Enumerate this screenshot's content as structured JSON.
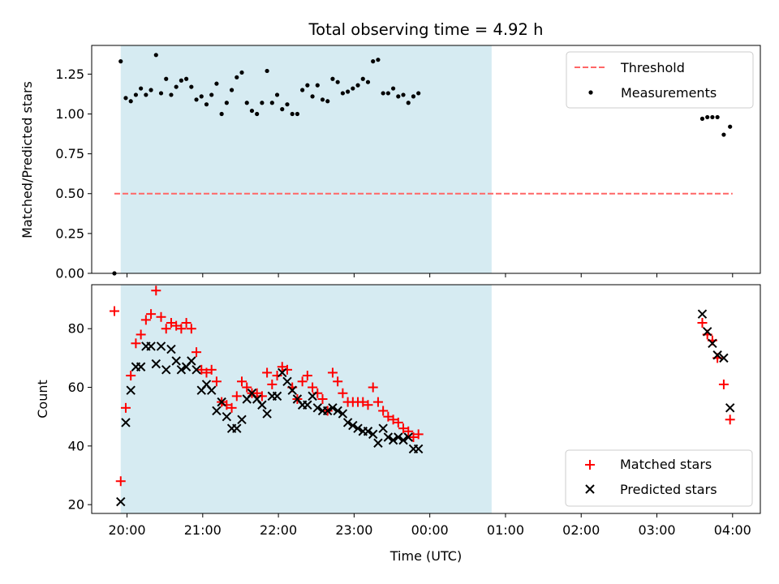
{
  "chart_data": [
    {
      "type": "scatter",
      "title": "Total observing time = 4.92 h",
      "ylabel": "Matched/Predicted stars",
      "xlabel": "",
      "xlim": [
        "19:32",
        "04:22"
      ],
      "ylim": [
        0,
        1.43
      ],
      "yticks": [
        "0.00",
        "0.25",
        "0.50",
        "0.75",
        "1.00",
        "1.25"
      ],
      "xticks": [
        "20:00",
        "21:00",
        "22:00",
        "23:00",
        "00:00",
        "01:00",
        "02:00",
        "03:00",
        "04:00"
      ],
      "x_tick_labels_visible": false,
      "grid": false,
      "legend": "upper-right",
      "highlight_span": {
        "start": "19:55",
        "end": "00:49",
        "color": "#add8e6"
      },
      "threshold": {
        "name": "Threshold",
        "value": 0.5,
        "x": [
          "19:50",
          "04:00"
        ],
        "color": "#ff6666",
        "style": "dashed"
      },
      "series": [
        {
          "name": "Measurements",
          "color": "#000000",
          "marker": "dot",
          "points": [
            [
              "19:50",
              0.0
            ],
            [
              "19:55",
              1.33
            ],
            [
              "19:59",
              1.1
            ],
            [
              "20:03",
              1.08
            ],
            [
              "20:07",
              1.12
            ],
            [
              "20:11",
              1.16
            ],
            [
              "20:15",
              1.12
            ],
            [
              "20:19",
              1.15
            ],
            [
              "20:23",
              1.37
            ],
            [
              "20:27",
              1.13
            ],
            [
              "20:31",
              1.22
            ],
            [
              "20:35",
              1.12
            ],
            [
              "20:39",
              1.17
            ],
            [
              "20:43",
              1.21
            ],
            [
              "20:47",
              1.22
            ],
            [
              "20:51",
              1.17
            ],
            [
              "20:55",
              1.09
            ],
            [
              "20:59",
              1.11
            ],
            [
              "21:03",
              1.06
            ],
            [
              "21:07",
              1.12
            ],
            [
              "21:11",
              1.19
            ],
            [
              "21:15",
              1.0
            ],
            [
              "21:19",
              1.07
            ],
            [
              "21:23",
              1.15
            ],
            [
              "21:27",
              1.23
            ],
            [
              "21:31",
              1.26
            ],
            [
              "21:35",
              1.07
            ],
            [
              "21:39",
              1.02
            ],
            [
              "21:43",
              1.0
            ],
            [
              "21:47",
              1.07
            ],
            [
              "21:51",
              1.27
            ],
            [
              "21:55",
              1.07
            ],
            [
              "21:59",
              1.12
            ],
            [
              "22:03",
              1.03
            ],
            [
              "22:07",
              1.06
            ],
            [
              "22:11",
              1.0
            ],
            [
              "22:15",
              1.0
            ],
            [
              "22:19",
              1.15
            ],
            [
              "22:23",
              1.18
            ],
            [
              "22:27",
              1.11
            ],
            [
              "22:31",
              1.18
            ],
            [
              "22:35",
              1.09
            ],
            [
              "22:39",
              1.08
            ],
            [
              "22:43",
              1.22
            ],
            [
              "22:47",
              1.2
            ],
            [
              "22:51",
              1.13
            ],
            [
              "22:55",
              1.14
            ],
            [
              "22:59",
              1.16
            ],
            [
              "23:03",
              1.18
            ],
            [
              "23:07",
              1.22
            ],
            [
              "23:11",
              1.2
            ],
            [
              "23:15",
              1.33
            ],
            [
              "23:19",
              1.34
            ],
            [
              "23:23",
              1.13
            ],
            [
              "23:27",
              1.13
            ],
            [
              "23:31",
              1.16
            ],
            [
              "23:35",
              1.11
            ],
            [
              "23:39",
              1.12
            ],
            [
              "23:43",
              1.07
            ],
            [
              "23:47",
              1.11
            ],
            [
              "23:51",
              1.13
            ],
            [
              "03:36",
              0.97
            ],
            [
              "03:40",
              0.98
            ],
            [
              "03:44",
              0.98
            ],
            [
              "03:48",
              0.98
            ],
            [
              "03:53",
              0.87
            ],
            [
              "03:58",
              0.92
            ]
          ]
        }
      ]
    },
    {
      "type": "scatter",
      "title": "",
      "xlabel": "Time (UTC)",
      "ylabel": "Count",
      "xlim": [
        "19:32",
        "04:22"
      ],
      "ylim": [
        17,
        95
      ],
      "yticks": [
        "20",
        "40",
        "60",
        "80"
      ],
      "xticks": [
        "20:00",
        "21:00",
        "22:00",
        "23:00",
        "00:00",
        "01:00",
        "02:00",
        "03:00",
        "04:00"
      ],
      "grid": false,
      "legend": "lower-right",
      "highlight_span": {
        "start": "19:55",
        "end": "00:49",
        "color": "#add8e6"
      },
      "series": [
        {
          "name": "Matched stars",
          "color": "#ff0000",
          "marker": "plus",
          "points": [
            [
              "19:50",
              86
            ],
            [
              "19:55",
              28
            ],
            [
              "19:59",
              53
            ],
            [
              "20:03",
              64
            ],
            [
              "20:07",
              75
            ],
            [
              "20:11",
              78
            ],
            [
              "20:15",
              83
            ],
            [
              "20:19",
              85
            ],
            [
              "20:23",
              93
            ],
            [
              "20:27",
              84
            ],
            [
              "20:31",
              80
            ],
            [
              "20:35",
              82
            ],
            [
              "20:39",
              81
            ],
            [
              "20:43",
              80
            ],
            [
              "20:47",
              82
            ],
            [
              "20:51",
              80
            ],
            [
              "20:55",
              72
            ],
            [
              "20:59",
              66
            ],
            [
              "21:03",
              65
            ],
            [
              "21:07",
              66
            ],
            [
              "21:11",
              62
            ],
            [
              "21:15",
              55
            ],
            [
              "21:19",
              54
            ],
            [
              "21:23",
              53
            ],
            [
              "21:27",
              57
            ],
            [
              "21:31",
              62
            ],
            [
              "21:35",
              60
            ],
            [
              "21:39",
              58
            ],
            [
              "21:43",
              58
            ],
            [
              "21:47",
              57
            ],
            [
              "21:51",
              65
            ],
            [
              "21:55",
              61
            ],
            [
              "21:59",
              64
            ],
            [
              "22:03",
              67
            ],
            [
              "22:07",
              66
            ],
            [
              "22:11",
              60
            ],
            [
              "22:15",
              56
            ],
            [
              "22:19",
              62
            ],
            [
              "22:23",
              64
            ],
            [
              "22:27",
              60
            ],
            [
              "22:31",
              58
            ],
            [
              "22:35",
              56
            ],
            [
              "22:39",
              52
            ],
            [
              "22:43",
              65
            ],
            [
              "22:47",
              62
            ],
            [
              "22:51",
              58
            ],
            [
              "22:55",
              55
            ],
            [
              "22:59",
              55
            ],
            [
              "23:03",
              55
            ],
            [
              "23:07",
              55
            ],
            [
              "23:11",
              54
            ],
            [
              "23:15",
              60
            ],
            [
              "23:19",
              55
            ],
            [
              "23:23",
              52
            ],
            [
              "23:27",
              50
            ],
            [
              "23:31",
              49
            ],
            [
              "23:35",
              48
            ],
            [
              "23:39",
              46
            ],
            [
              "23:43",
              45
            ],
            [
              "23:47",
              43
            ],
            [
              "23:51",
              44
            ],
            [
              "03:36",
              82
            ],
            [
              "03:40",
              78
            ],
            [
              "03:44",
              76
            ],
            [
              "03:48",
              70
            ],
            [
              "03:53",
              61
            ],
            [
              "03:58",
              49
            ]
          ]
        },
        {
          "name": "Predicted stars",
          "color": "#000000",
          "marker": "cross",
          "points": [
            [
              "19:55",
              21
            ],
            [
              "19:59",
              48
            ],
            [
              "20:03",
              59
            ],
            [
              "20:07",
              67
            ],
            [
              "20:11",
              67
            ],
            [
              "20:15",
              74
            ],
            [
              "20:19",
              74
            ],
            [
              "20:23",
              68
            ],
            [
              "20:27",
              74
            ],
            [
              "20:31",
              66
            ],
            [
              "20:35",
              73
            ],
            [
              "20:39",
              69
            ],
            [
              "20:43",
              66
            ],
            [
              "20:47",
              67
            ],
            [
              "20:51",
              69
            ],
            [
              "20:55",
              66
            ],
            [
              "20:59",
              59
            ],
            [
              "21:03",
              61
            ],
            [
              "21:07",
              59
            ],
            [
              "21:11",
              52
            ],
            [
              "21:15",
              55
            ],
            [
              "21:19",
              50
            ],
            [
              "21:23",
              46
            ],
            [
              "21:27",
              46
            ],
            [
              "21:31",
              49
            ],
            [
              "21:35",
              56
            ],
            [
              "21:39",
              58
            ],
            [
              "21:43",
              56
            ],
            [
              "21:47",
              54
            ],
            [
              "21:51",
              51
            ],
            [
              "21:55",
              57
            ],
            [
              "21:59",
              57
            ],
            [
              "22:03",
              65
            ],
            [
              "22:07",
              62
            ],
            [
              "22:11",
              59
            ],
            [
              "22:15",
              56
            ],
            [
              "22:19",
              54
            ],
            [
              "22:23",
              54
            ],
            [
              "22:27",
              57
            ],
            [
              "22:31",
              53
            ],
            [
              "22:35",
              52
            ],
            [
              "22:39",
              52
            ],
            [
              "22:43",
              53
            ],
            [
              "22:47",
              52
            ],
            [
              "22:51",
              51
            ],
            [
              "22:55",
              48
            ],
            [
              "22:59",
              47
            ],
            [
              "23:03",
              46
            ],
            [
              "23:07",
              45
            ],
            [
              "23:11",
              45
            ],
            [
              "23:15",
              44
            ],
            [
              "23:19",
              41
            ],
            [
              "23:23",
              46
            ],
            [
              "23:27",
              43
            ],
            [
              "23:31",
              42
            ],
            [
              "23:35",
              43
            ],
            [
              "23:39",
              42
            ],
            [
              "23:43",
              43
            ],
            [
              "23:47",
              39
            ],
            [
              "23:51",
              39
            ],
            [
              "03:36",
              85
            ],
            [
              "03:40",
              79
            ],
            [
              "03:44",
              75
            ],
            [
              "03:48",
              71
            ],
            [
              "03:53",
              70
            ],
            [
              "03:58",
              53
            ]
          ]
        }
      ]
    }
  ]
}
